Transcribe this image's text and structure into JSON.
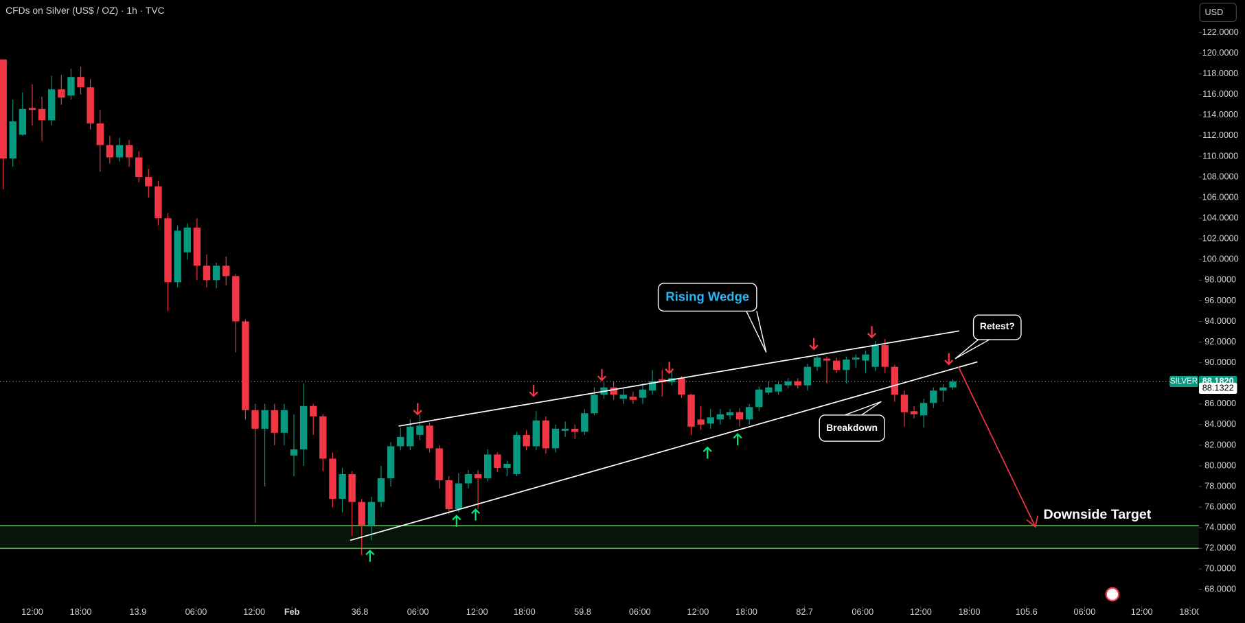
{
  "chart_data": {
    "type": "candlestick",
    "title": "CFDs on Silver (US$ / OZ) · 1h · TVC",
    "currency": "USD",
    "open": [
      119.4,
      109.8,
      112.1,
      114.7,
      114.6,
      113.5,
      116.5,
      115.9,
      117.7,
      116.7,
      113.2,
      111.1,
      109.9,
      111.1,
      109.9,
      108.0,
      107.1,
      104.0,
      97.8,
      100.7,
      103.1,
      99.4,
      98.0,
      99.4,
      98.4,
      94.0,
      85.4,
      83.6,
      85.4,
      83.2,
      81.0,
      81.6,
      85.8,
      84.8,
      80.7,
      76.8,
      79.2,
      76.5,
      74.2,
      76.5,
      78.8,
      81.9,
      81.9,
      83.0,
      83.9,
      81.7,
      78.6,
      75.8,
      78.3,
      79.2,
      78.8,
      81.1,
      79.8,
      79.2,
      83.0,
      81.9,
      84.4,
      81.7,
      83.4,
      83.6,
      83.3,
      85.1,
      86.9,
      87.6,
      86.5,
      86.7,
      86.6,
      87.3,
      88.4,
      88.1,
      88.5,
      86.9,
      84.5,
      84.1,
      84.5,
      84.9,
      85.2,
      84.5,
      85.7,
      87.1,
      87.2,
      87.8,
      88.2,
      87.8,
      89.6,
      90.4,
      90.2,
      89.3,
      90.3,
      90.2,
      89.6,
      91.7,
      89.6,
      86.9,
      85.3,
      84.9,
      86.1,
      87.3,
      87.6
    ],
    "high": [
      119.4,
      115.5,
      116.2,
      117.0,
      115.8,
      117.8,
      117.9,
      118.5,
      118.7,
      117.5,
      114.5,
      112.0,
      111.8,
      111.6,
      110.5,
      108.8,
      107.6,
      104.5,
      103.3,
      103.5,
      104.0,
      100.5,
      99.7,
      100.3,
      98.6,
      94.2,
      86.0,
      86.0,
      86.0,
      86.0,
      85.0,
      88.0,
      86.0,
      85.0,
      81.3,
      79.8,
      79.5,
      76.8,
      77.0,
      80.0,
      82.3,
      83.7,
      84.5,
      85.0,
      84.2,
      82.0,
      79.0,
      79.3,
      79.6,
      79.6,
      81.6,
      81.3,
      80.5,
      83.3,
      83.5,
      85.3,
      84.8,
      84.0,
      84.3,
      84.0,
      85.5,
      87.6,
      88.1,
      88.2,
      87.5,
      87.2,
      88.0,
      89.3,
      89.3,
      89.2,
      88.7,
      87.0,
      85.8,
      85.5,
      85.5,
      85.5,
      85.6,
      86.0,
      87.7,
      88.2,
      88.2,
      88.5,
      88.5,
      89.9,
      90.8,
      90.6,
      90.5,
      90.6,
      90.8,
      91.2,
      92.1,
      92.3,
      89.8,
      87.3,
      85.8,
      86.5,
      87.6,
      87.9,
      88.4
    ],
    "low": [
      106.8,
      109.0,
      112.0,
      113.0,
      111.5,
      113.0,
      115.0,
      115.5,
      116.0,
      112.6,
      108.5,
      109.3,
      109.5,
      109.0,
      107.5,
      106.0,
      103.3,
      95.0,
      97.3,
      100.0,
      98.0,
      97.3,
      97.2,
      97.5,
      91.0,
      84.5,
      74.5,
      78.0,
      82.0,
      82.0,
      79.0,
      80.0,
      83.0,
      79.5,
      76.0,
      75.5,
      73.2,
      71.3,
      72.8,
      76.0,
      78.0,
      81.5,
      81.5,
      82.5,
      81.3,
      77.8,
      75.3,
      75.5,
      77.8,
      75.8,
      78.5,
      79.4,
      79.0,
      79.0,
      81.5,
      81.5,
      81.2,
      81.3,
      82.8,
      82.6,
      83.0,
      84.9,
      86.5,
      86.4,
      86.0,
      86.0,
      86.0,
      86.9,
      86.7,
      87.8,
      86.6,
      83.0,
      83.5,
      83.6,
      84.0,
      84.5,
      83.8,
      84.0,
      85.3,
      86.9,
      86.9,
      87.5,
      87.5,
      87.3,
      89.2,
      88.0,
      89.0,
      88.0,
      89.5,
      89.0,
      89.2,
      89.0,
      86.2,
      83.8,
      84.6,
      83.7,
      85.6,
      86.2,
      87.4
    ],
    "close": [
      109.8,
      113.4,
      114.6,
      114.5,
      113.5,
      116.5,
      115.7,
      117.7,
      116.7,
      113.2,
      111.1,
      109.9,
      111.1,
      109.9,
      108.0,
      107.1,
      104.0,
      97.8,
      102.8,
      103.1,
      99.4,
      98.0,
      99.4,
      98.4,
      94.0,
      85.4,
      83.6,
      85.4,
      83.2,
      85.4,
      81.6,
      85.8,
      84.8,
      80.7,
      76.8,
      79.2,
      76.5,
      74.2,
      76.5,
      78.8,
      81.9,
      82.8,
      83.8,
      83.9,
      81.7,
      78.6,
      75.8,
      78.3,
      79.2,
      78.8,
      81.1,
      79.8,
      80.2,
      83.0,
      81.9,
      84.4,
      81.7,
      83.6,
      83.6,
      83.3,
      85.1,
      86.9,
      87.6,
      86.9,
      86.9,
      86.4,
      87.4,
      88.2,
      88.1,
      88.5,
      86.9,
      83.8,
      84.0,
      84.7,
      85.0,
      85.2,
      84.5,
      85.7,
      87.4,
      87.6,
      87.9,
      88.2,
      87.8,
      89.6,
      90.5,
      90.2,
      89.3,
      90.3,
      90.5,
      90.8,
      91.7,
      89.6,
      86.9,
      85.2,
      85.0,
      86.1,
      87.3,
      87.6,
      88.182
    ],
    "up_color": "#089981",
    "down_color": "#f23645",
    "xlim": [
      -0.33,
      123.4
    ],
    "xticks": [
      {
        "value": 3.0,
        "label": "12:00"
      },
      {
        "value": 8.0,
        "label": "18:00"
      },
      13.9,
      {
        "value": 19.9,
        "label": "06:00"
      },
      {
        "value": 25.9,
        "label": "12:00"
      },
      {
        "value": 29.8,
        "label": "Feb"
      },
      36.8,
      {
        "value": 42.8,
        "label": "06:00"
      },
      {
        "value": 48.9,
        "label": "12:00"
      },
      {
        "value": 53.8,
        "label": "18:00"
      },
      59.8,
      {
        "value": 65.7,
        "label": "06:00"
      },
      {
        "value": 71.7,
        "label": "12:00"
      },
      {
        "value": 76.7,
        "label": "18:00"
      },
      82.7,
      {
        "value": 88.7,
        "label": "06:00"
      },
      {
        "value": 94.7,
        "label": "12:00"
      },
      {
        "value": 99.7,
        "label": "18:00"
      },
      105.6,
      {
        "value": 111.6,
        "label": "06:00"
      },
      {
        "value": 117.5,
        "label": "12:00"
      },
      {
        "value": 122.5,
        "label": "18:00"
      }
    ],
    "ylim": [
      66.7,
      125.15
    ],
    "yticks": [
      {
        "value": 122,
        "label": "122.0000"
      },
      {
        "value": 120,
        "label": "120.0000"
      },
      {
        "value": 118,
        "label": "118.0000"
      },
      {
        "value": 116,
        "label": "116.0000"
      },
      {
        "value": 114,
        "label": "114.0000"
      },
      {
        "value": 112,
        "label": "112.0000"
      },
      {
        "value": 110,
        "label": "110.0000"
      },
      {
        "value": 108,
        "label": "108.0000"
      },
      {
        "value": 106,
        "label": "106.0000"
      },
      {
        "value": 104,
        "label": "104.0000"
      },
      {
        "value": 102,
        "label": "102.0000"
      },
      {
        "value": 100,
        "label": "100.0000"
      },
      {
        "value": 98,
        "label": "98.0000"
      },
      {
        "value": 96,
        "label": "96.0000"
      },
      {
        "value": 94,
        "label": "94.0000"
      },
      {
        "value": 92,
        "label": "92.0000"
      },
      {
        "value": 90,
        "label": "90.0000"
      },
      {
        "value": 88,
        "label": "88.0000"
      },
      {
        "value": 86,
        "label": "86.0000"
      },
      {
        "value": 84,
        "label": "84.0000"
      },
      {
        "value": 82,
        "label": "82.0000"
      },
      {
        "value": 80,
        "label": "80.0000"
      },
      {
        "value": 78,
        "label": "78.0000"
      },
      {
        "value": 76,
        "label": "76.0000"
      },
      {
        "value": 74,
        "label": "74.0000"
      },
      {
        "value": 72,
        "label": "72.0000"
      },
      {
        "value": 70,
        "label": "70.0000"
      },
      {
        "value": 68,
        "label": "68.0000"
      }
    ],
    "last_price": {
      "symbol": "SILVER",
      "value": 88.182,
      "label": "88.1820"
    },
    "secondary_price": {
      "value": 88.1322,
      "label": "88.1322"
    },
    "target_zone": {
      "low": 72,
      "high": 74.2,
      "color": "#4caf50"
    },
    "annotations": {
      "wedge": "Rising Wedge",
      "retest": "Retest?",
      "breakdown": "Breakdown",
      "target": "Downside Target"
    }
  }
}
